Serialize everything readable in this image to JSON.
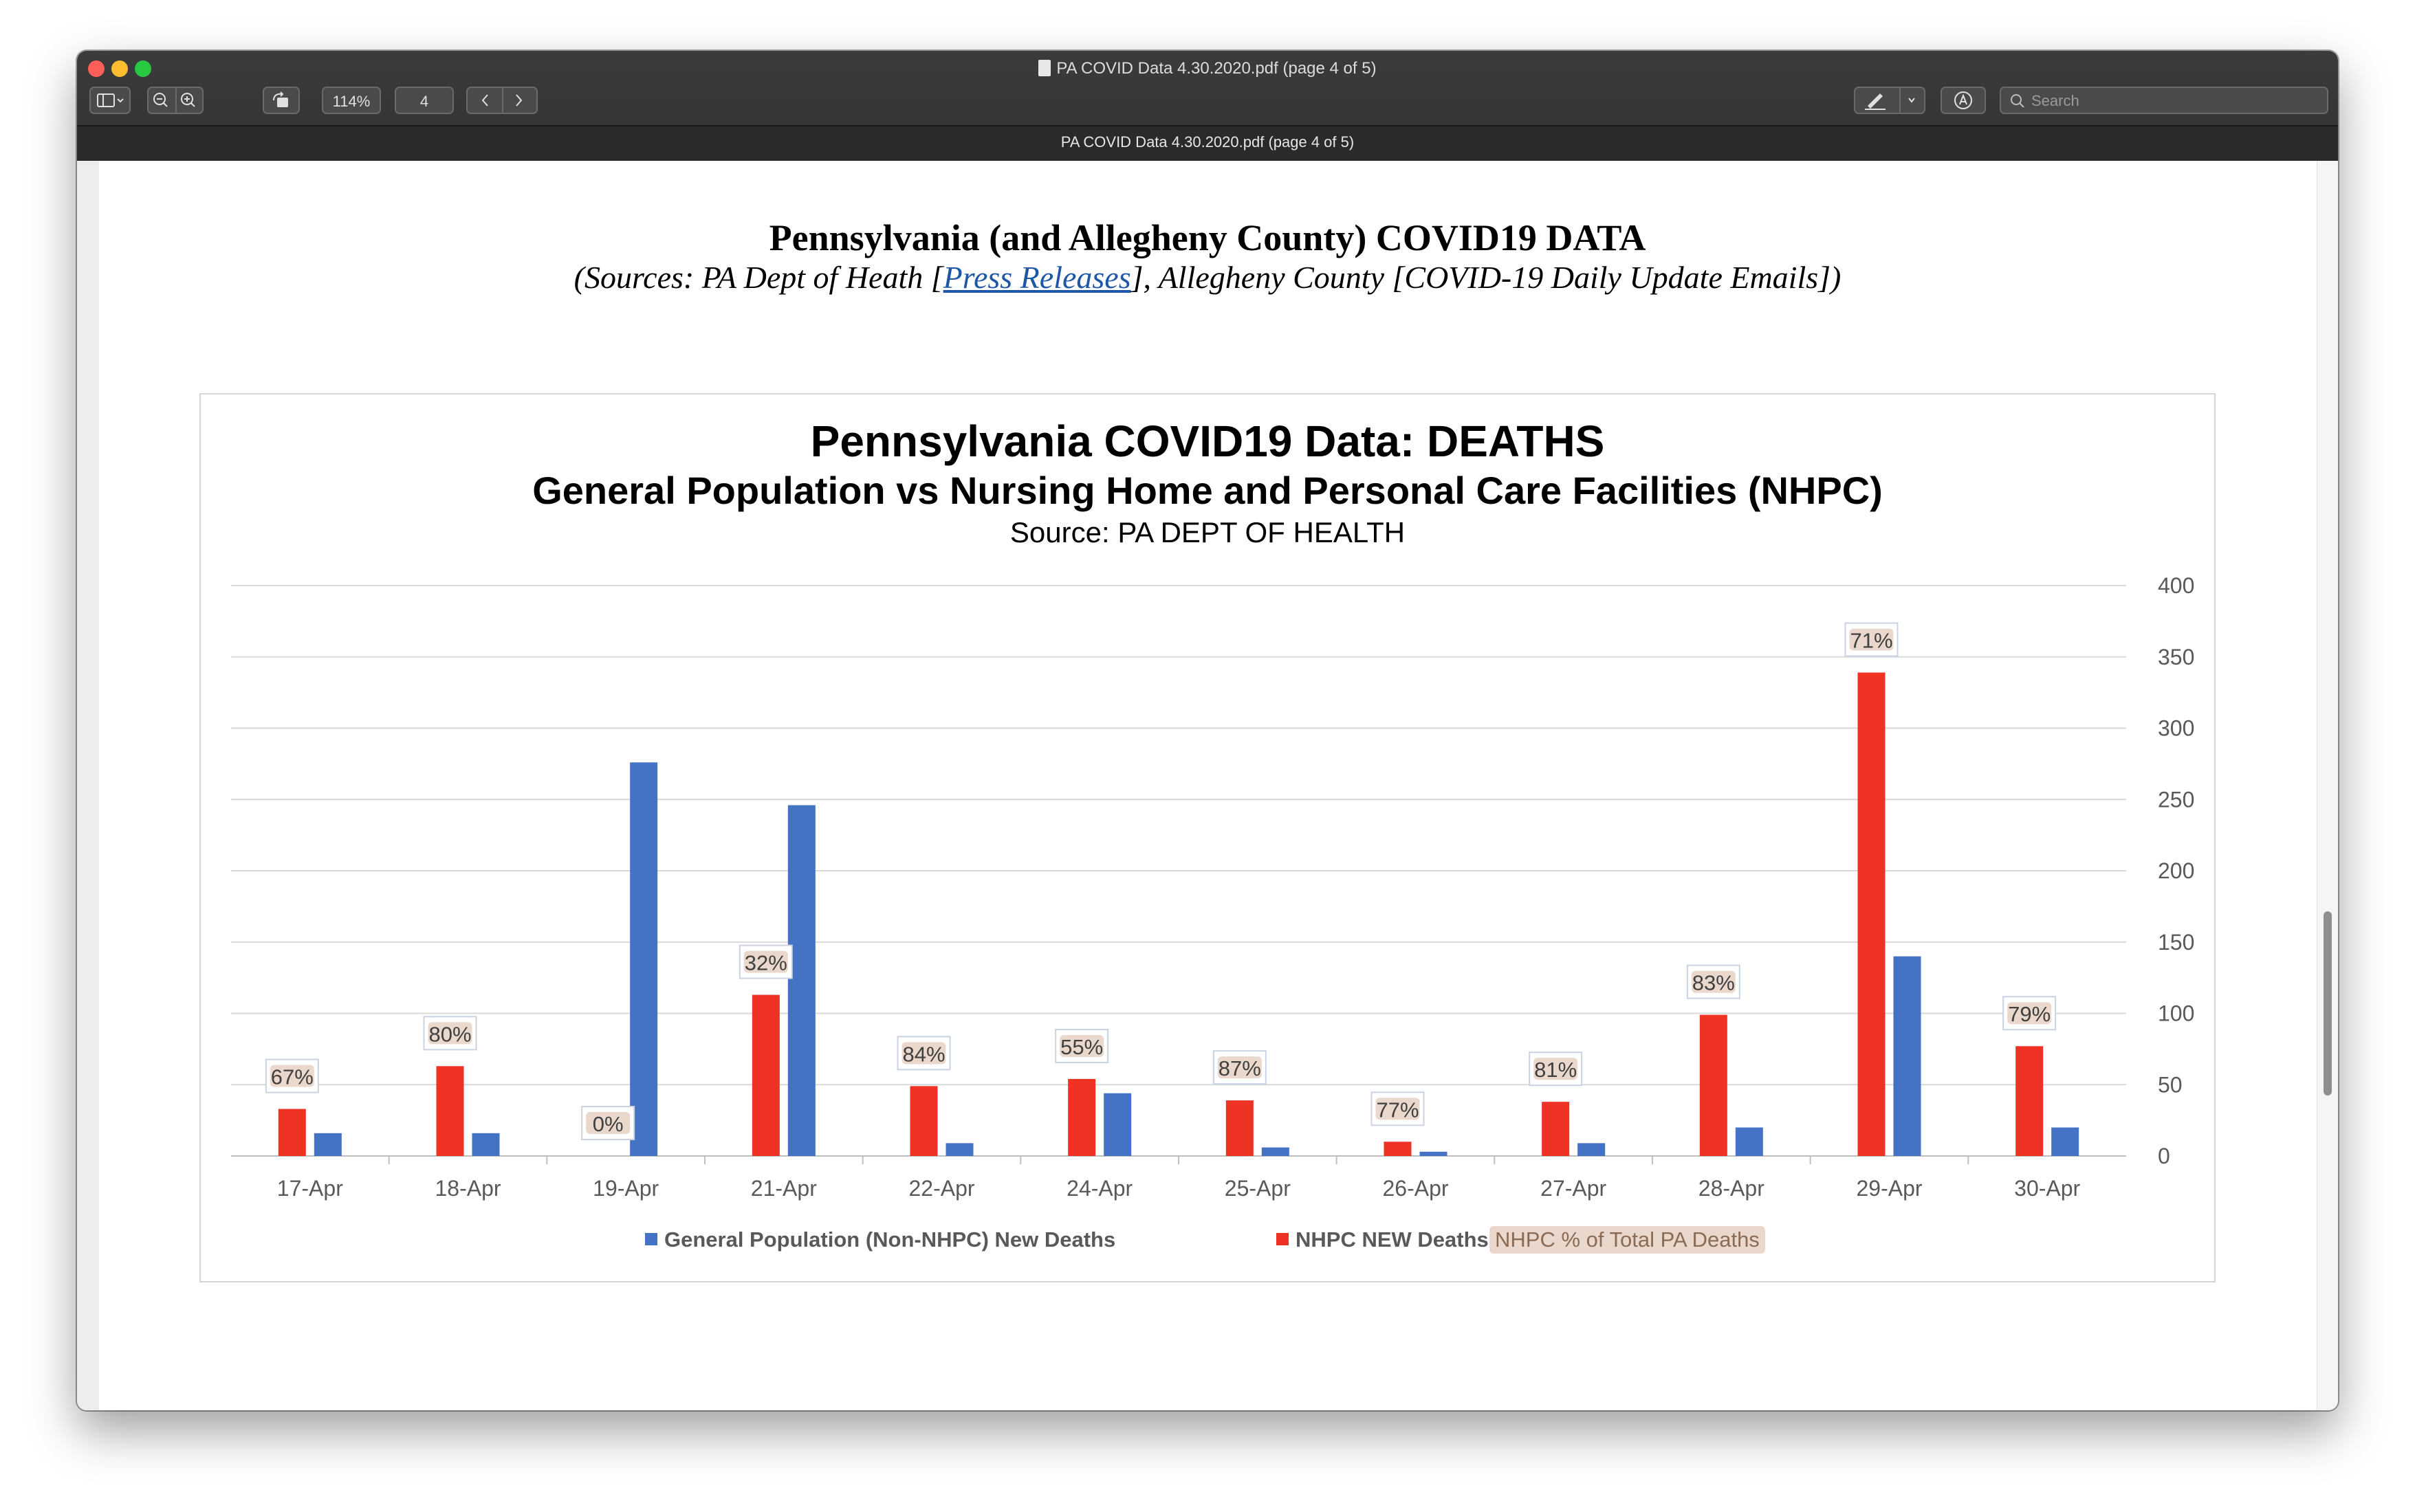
{
  "window": {
    "title": "PA COVID Data 4.30.2020.pdf (page 4 of 5)",
    "tab_title": "PA COVID Data 4.30.2020.pdf (page 4 of 5)"
  },
  "toolbar": {
    "zoom_level": "114%",
    "page_number": "4",
    "search_placeholder": "Search"
  },
  "page": {
    "heading": "Pennsylvania (and Allegheny County) COVID19 DATA",
    "sub_prefix": "(Sources: PA Dept of Heath [",
    "sub_link": "Press Releases",
    "sub_suffix": "], Allegheny County [COVID-19 Daily Update Emails])"
  },
  "colors": {
    "general_population": "#4472c4",
    "nhpc": "#ee3224",
    "percent_label_bg": "#ead8cc"
  },
  "chart_data": {
    "type": "bar",
    "title": "Pennsylvania COVID19 Data: DEATHS",
    "subtitle": "General Population vs Nursing Home and Personal Care Facilities (NHPC)",
    "source": "Source: PA DEPT OF HEALTH",
    "categories": [
      "17-Apr",
      "18-Apr",
      "19-Apr",
      "21-Apr",
      "22-Apr",
      "24-Apr",
      "25-Apr",
      "26-Apr",
      "27-Apr",
      "28-Apr",
      "29-Apr",
      "30-Apr"
    ],
    "series": [
      {
        "name": "NHPC NEW Deaths",
        "color": "#ee3224",
        "values": [
          33,
          63,
          0,
          113,
          49,
          54,
          39,
          10,
          38,
          99,
          339,
          77
        ]
      },
      {
        "name": "General Population (Non-NHPC) New Deaths",
        "color": "#4472c4",
        "values": [
          16,
          16,
          276,
          246,
          9,
          44,
          6,
          3,
          9,
          20,
          140,
          20
        ]
      }
    ],
    "percent_labels": [
      "67%",
      "80%",
      "0%",
      "32%",
      "84%",
      "55%",
      "87%",
      "77%",
      "81%",
      "83%",
      "71%",
      "79%"
    ],
    "percent_series_name": "NHPC % of Total PA Deaths",
    "yticks": [
      "0",
      "50",
      "100",
      "150",
      "200",
      "250",
      "300",
      "350",
      "400"
    ],
    "ylim": [
      0,
      400
    ],
    "y_axis_side": "right",
    "grid": true,
    "legend_position": "bottom",
    "legend": {
      "general": "General Population (Non-NHPC) New Deaths",
      "nhpc": "NHPC NEW Deaths",
      "percent": "NHPC % of Total PA Deaths"
    }
  }
}
